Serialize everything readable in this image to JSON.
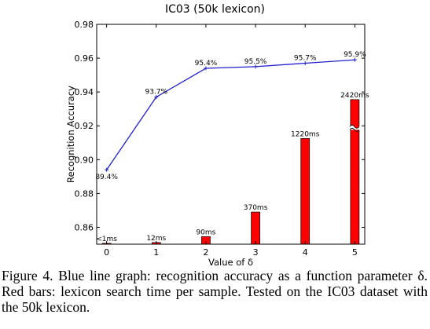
{
  "chart_data": {
    "type": "line+bar",
    "title": "IC03 (50k lexicon)",
    "xlabel": "Value of δ",
    "ylabel": "Recognition Accuracy",
    "xlim": [
      -0.2,
      5.2
    ],
    "ylim": [
      0.85,
      0.98
    ],
    "xticks": [
      0,
      1,
      2,
      3,
      4,
      5
    ],
    "yticks": [
      0.86,
      0.88,
      0.9,
      0.92,
      0.94,
      0.96,
      0.98
    ],
    "ytick_labels": [
      "0.86",
      "0.88",
      "0.90",
      "0.92",
      "0.94",
      "0.96",
      "0.98"
    ],
    "grid": false,
    "line_series": {
      "name": "Recognition Accuracy",
      "color": "#2020d0",
      "x": [
        0,
        1,
        2,
        3,
        4,
        5
      ],
      "y": [
        0.894,
        0.937,
        0.954,
        0.955,
        0.957,
        0.959
      ],
      "labels": [
        "89.4%",
        "93.7%",
        "95.4%",
        "95.5%",
        "95.7%",
        "95.9%"
      ]
    },
    "bar_series": {
      "name": "Lexicon search time per sample",
      "color": "#ff0000",
      "x": [
        0,
        1,
        2,
        3,
        4,
        5
      ],
      "labels": [
        "<1ms",
        "12ms",
        "90ms",
        "370ms",
        "1220ms",
        "2420ms"
      ],
      "bar_tops": [
        0.8505,
        0.851,
        0.8545,
        0.869,
        0.9125,
        0.9355
      ],
      "axis_break_on_bar": 5
    }
  },
  "caption": "Figure 4. Blue line graph: recognition accuracy as a function parameter δ. Red bars: lexicon search time per sample. Tested on the IC03 dataset with the 50k lexicon."
}
